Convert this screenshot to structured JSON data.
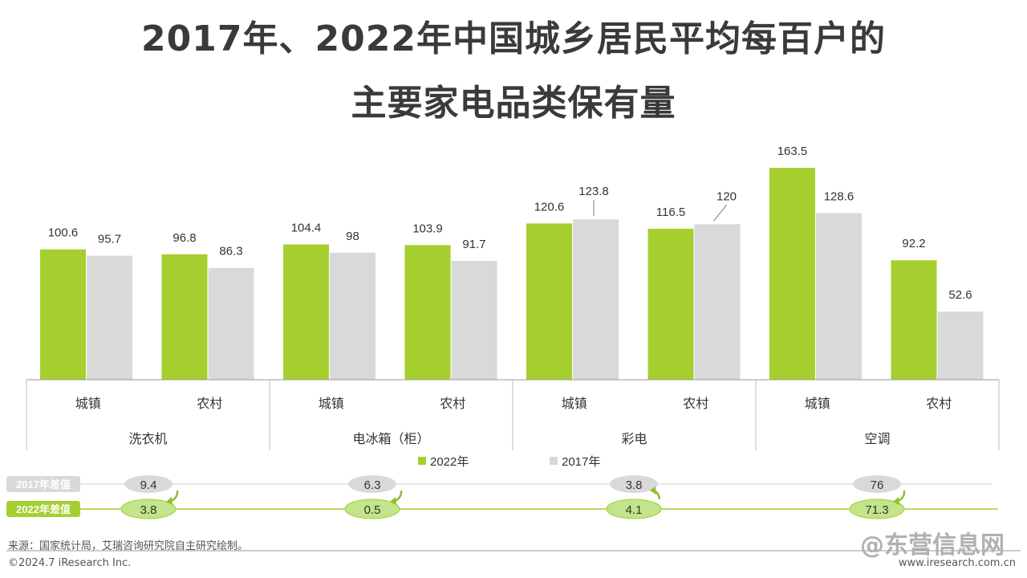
{
  "title_line1": "2017年、2022年中国城乡居民平均每百户的",
  "title_line2": "主要家电品类保有量",
  "chart_data": {
    "type": "bar",
    "groups": [
      "洗衣机",
      "电冰箱（柜）",
      "彩电",
      "空调"
    ],
    "subcategories": [
      "城镇",
      "农村",
      "城镇",
      "农村",
      "城镇",
      "农村",
      "城镇",
      "农村"
    ],
    "series": [
      {
        "name": "2022年",
        "color": "#a5cf2f",
        "values": [
          100.6,
          96.8,
          104.4,
          103.9,
          120.6,
          116.5,
          163.5,
          92.2
        ]
      },
      {
        "name": "2017年",
        "color": "#d9d9d9",
        "values": [
          95.7,
          86.3,
          98,
          91.7,
          123.8,
          120,
          128.6,
          52.6
        ]
      }
    ],
    "value_labels": {
      "2022年": [
        "100.6",
        "96.8",
        "104.4",
        "103.9",
        "120.6",
        "116.5",
        "163.5",
        "92.2"
      ],
      "2017年": [
        "95.7",
        "86.3",
        "98",
        "91.7",
        "123.8",
        "120",
        "128.6",
        "52.6"
      ]
    },
    "legend": [
      "2022年",
      "2017年"
    ],
    "ylim": [
      0,
      170
    ],
    "gap_rows": [
      {
        "label": "2017年差值",
        "values": [
          "9.4",
          "6.3",
          "3.8",
          "76"
        ]
      },
      {
        "label": "2022年差值",
        "values": [
          "3.8",
          "0.5",
          "4.1",
          "71.3"
        ]
      }
    ]
  },
  "source": "来源：国家统计局，艾瑞咨询研究院自主研究绘制。",
  "copyright": "©2024.7 iResearch Inc.",
  "site": "www.iresearch.com.cn",
  "watermark": "@东营信息网"
}
